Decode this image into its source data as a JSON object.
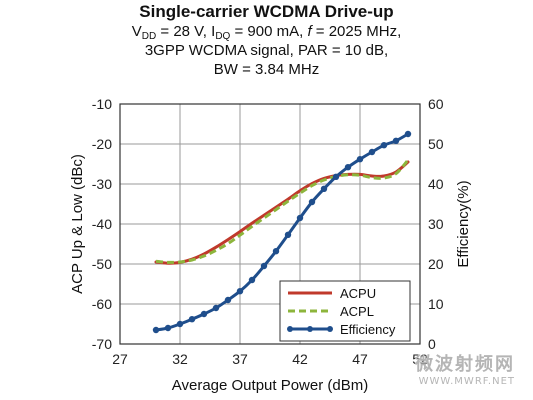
{
  "title": {
    "line1": "Single-carrier WCDMA Drive-up",
    "vdd_sym": "V",
    "vdd_sub": "DD",
    "vdd_val": " = 28 V, ",
    "idq_sym": "I",
    "idq_sub": "DQ",
    "idq_val": " = 900 mA, ",
    "freq_sym": "f",
    "freq_val": " = 2025 MHz,",
    "line3": "3GPP WCDMA signal, PAR = 10 dB,",
    "line4": "BW = 3.84 MHz"
  },
  "watermark": {
    "line1": "微波射频网",
    "line2": "WWW.MWRF.NET"
  },
  "colors": {
    "acpu": "#c0392b",
    "acpl": "#8db53c",
    "efficiency": "#1f4e8c",
    "grid": "#9a9a9a"
  },
  "chart_data": {
    "type": "line",
    "title": "Single-carrier WCDMA Drive-up",
    "xlabel": "Average Output Power (dBm)",
    "ylabel_left": "ACP Up & Low (dBc)",
    "ylabel_right": "Efficiency(%)",
    "xlim": [
      27,
      52
    ],
    "ylim_left": [
      -70,
      -10
    ],
    "ylim_right": [
      0,
      60
    ],
    "x_ticks": [
      "27",
      "32",
      "37",
      "42",
      "47",
      "52"
    ],
    "y_left_ticks": [
      "-10",
      "-20",
      "-30",
      "-40",
      "-50",
      "-60",
      "-70"
    ],
    "y_right_ticks": [
      "60",
      "50",
      "40",
      "30",
      "20",
      "10",
      "0"
    ],
    "grid": true,
    "legend_position": "bottom-right",
    "series": [
      {
        "name": "ACPU",
        "axis": "left",
        "style": "solid",
        "x": [
          30,
          31,
          32,
          33,
          34,
          35,
          36,
          37,
          38,
          39,
          40,
          41,
          42,
          43,
          44,
          45,
          46,
          47,
          48,
          49,
          50,
          51
        ],
        "y": [
          -49.5,
          -49.8,
          -49.6,
          -48.8,
          -47.5,
          -45.8,
          -43.9,
          -41.9,
          -39.8,
          -37.8,
          -35.8,
          -33.8,
          -31.7,
          -29.9,
          -28.6,
          -27.9,
          -27.6,
          -27.6,
          -28.0,
          -28.0,
          -27.0,
          -24.5
        ]
      },
      {
        "name": "ACPL",
        "axis": "left",
        "style": "dashed",
        "x": [
          30,
          31,
          32,
          33,
          34,
          35,
          36,
          37,
          38,
          39,
          40,
          41,
          42,
          43,
          44,
          45,
          46,
          47,
          48,
          49,
          50,
          51
        ],
        "y": [
          -49.3,
          -49.6,
          -49.5,
          -49.0,
          -48.0,
          -46.6,
          -44.9,
          -42.8,
          -40.6,
          -38.5,
          -36.4,
          -34.3,
          -32.3,
          -30.4,
          -29.0,
          -28.1,
          -27.7,
          -27.8,
          -28.4,
          -28.5,
          -27.4,
          -24.0
        ]
      },
      {
        "name": "Efficiency",
        "axis": "right",
        "style": "solid-markers",
        "x": [
          30,
          31,
          32,
          33,
          34,
          35,
          36,
          37,
          38,
          39,
          40,
          41,
          42,
          43,
          44,
          45,
          46,
          47,
          48,
          49,
          50,
          51
        ],
        "y": [
          3.5,
          4.0,
          5.0,
          6.2,
          7.5,
          9.0,
          11.0,
          13.2,
          16.0,
          19.5,
          23.2,
          27.3,
          31.5,
          35.5,
          38.8,
          41.8,
          44.2,
          46.2,
          48.0,
          49.7,
          50.8,
          52.5
        ]
      }
    ]
  }
}
